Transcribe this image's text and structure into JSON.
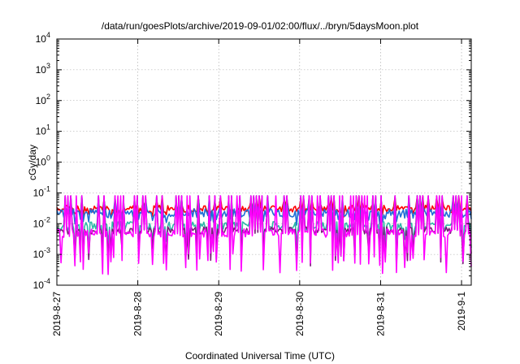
{
  "chart_data": {
    "type": "line",
    "title": "/data/run/goesPlots/archive/2019-09-01/02:00/flux/../bryn/5daysMoon.plot",
    "xlabel": "Coordinated Universal Time (UTC)",
    "ylabel": "cGy/day",
    "yscale": "log",
    "ylim": [
      0.0001,
      10000
    ],
    "xlim_days": [
      0,
      5.12
    ],
    "grid": true,
    "y_ticks": [
      {
        "value": 0.0001,
        "base": "10",
        "exp": "-4"
      },
      {
        "value": 0.001,
        "base": "10",
        "exp": "-3"
      },
      {
        "value": 0.01,
        "base": "10",
        "exp": "-2"
      },
      {
        "value": 0.1,
        "base": "10",
        "exp": "-1"
      },
      {
        "value": 1,
        "base": "10",
        "exp": "0"
      },
      {
        "value": 10,
        "base": "10",
        "exp": "1"
      },
      {
        "value": 100,
        "base": "10",
        "exp": "2"
      },
      {
        "value": 1000,
        "base": "10",
        "exp": "3"
      },
      {
        "value": 10000,
        "base": "10",
        "exp": "4"
      }
    ],
    "x_ticks": [
      {
        "day": 0,
        "label": "2019-8-27"
      },
      {
        "day": 1,
        "label": "2019-8-28"
      },
      {
        "day": 2,
        "label": "2019-8-29"
      },
      {
        "day": 3,
        "label": "2019-8-30"
      },
      {
        "day": 4,
        "label": "2019-8-31"
      },
      {
        "day": 5,
        "label": "2019-9-1"
      }
    ],
    "series": [
      {
        "color": "#ff0000",
        "base": 0.03,
        "noise": 0.12,
        "spike_prob": 0.25,
        "spike_gain": 0.4
      },
      {
        "color": "#1f6fd6",
        "base": 0.022,
        "noise": 0.14,
        "spike_prob": 0.35,
        "spike_gain": 0.55
      },
      {
        "color": "#2fb7a8",
        "base": 0.0085,
        "noise": 0.14,
        "spike_prob": 0.35,
        "spike_gain": 1.6
      },
      {
        "color": "#7a1d7a",
        "base": 0.006,
        "noise": 0.12,
        "spike_prob": 0.35,
        "spike_gain": 2.2
      },
      {
        "color": "#ff00ff",
        "base": 0.005,
        "noise": 0.14,
        "spike_prob": 0.4,
        "spike_gain": 2.6
      }
    ]
  }
}
